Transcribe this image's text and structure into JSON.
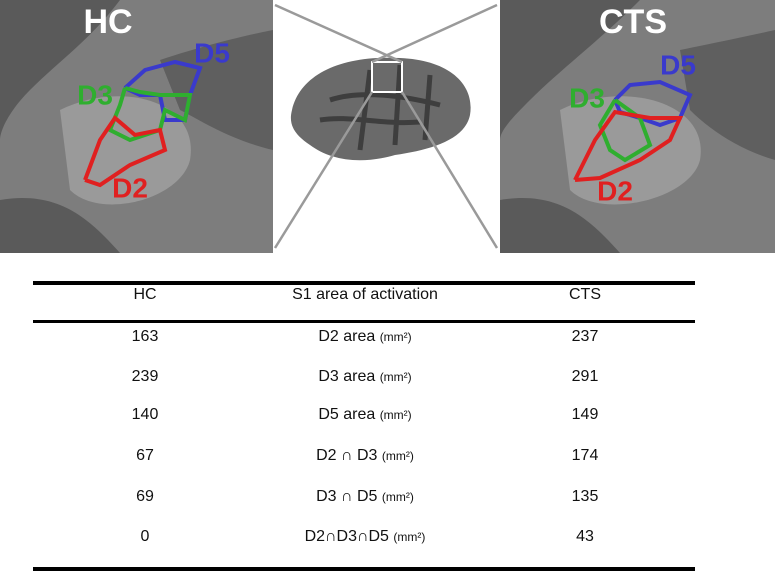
{
  "panels": [
    {
      "title": "HC",
      "labels": {
        "d5": "D5",
        "d3": "D3",
        "d2": "D2"
      }
    },
    {
      "title": "CTS",
      "labels": {
        "d5": "D5",
        "d3": "D3",
        "d2": "D2"
      }
    }
  ],
  "table": {
    "header": [
      "HC",
      "S1 area of activation",
      "CTS"
    ],
    "rows": [
      {
        "hc": 163,
        "area": "D2 area",
        "unit": "(mm²)",
        "cts": 237
      },
      {
        "hc": 239,
        "area": "D3 area",
        "unit": "(mm²)",
        "cts": 291
      },
      {
        "hc": 140,
        "area": "D5 area",
        "unit": "(mm²)",
        "cts": 149
      },
      {
        "hc": 67,
        "area": "D2 ∩ D3",
        "unit": "(mm²)",
        "cts": 174
      },
      {
        "hc": 69,
        "area": "D3 ∩ D5",
        "unit": "(mm²)",
        "cts": 135
      },
      {
        "hc": 0,
        "area": "D2∩D3∩D5",
        "unit": "(mm²)",
        "cts": 43
      }
    ]
  }
}
